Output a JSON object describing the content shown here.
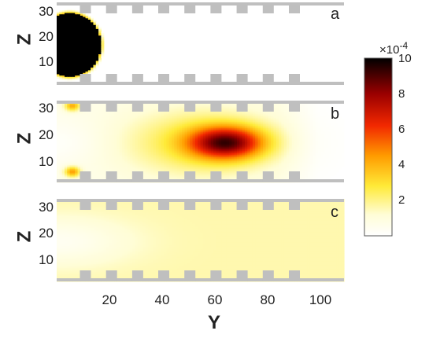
{
  "chart_data": {
    "type": "heatmap",
    "xlabel": "Y",
    "ylabel": "Z",
    "x_ticks": [
      "20",
      "40",
      "60",
      "80",
      "100"
    ],
    "y_ticks": [
      "30",
      "20",
      "10"
    ],
    "xlim": [
      0,
      110
    ],
    "ylim": [
      2,
      33
    ],
    "panels": [
      {
        "label": "a",
        "description": "initial concentration: saturated disc centered near Y=5, Z=17, radius about 12",
        "blobs": [
          {
            "y": 5,
            "z": 17,
            "ry": 12,
            "rz": 12,
            "peak": 10,
            "shape": "disc"
          }
        ]
      },
      {
        "label": "b",
        "description": "plume advected downstream, peak near Y=65, Z=17",
        "blobs": [
          {
            "y": 65,
            "z": 17,
            "ry": 14,
            "rz": 6,
            "peak": 6.8,
            "shape": "gauss"
          },
          {
            "y": 55,
            "z": 17,
            "ry": 30,
            "rz": 13,
            "peak": 2.2,
            "shape": "gauss"
          },
          {
            "y": 6,
            "z": 31,
            "ry": 3,
            "rz": 2,
            "peak": 3.5,
            "shape": "gauss"
          },
          {
            "y": 6,
            "z": 6,
            "ry": 3,
            "rz": 2,
            "peak": 3.8,
            "shape": "gauss"
          }
        ],
        "background": 0.6
      },
      {
        "label": "c",
        "description": "nearly uniform low concentration across domain",
        "blobs": [],
        "background": 1.6
      }
    ],
    "colorbar": {
      "label_exponent": "×10",
      "exponent_power": "-4",
      "ticks": [
        "10",
        "8",
        "6",
        "4",
        "2"
      ],
      "range": [
        0,
        10
      ],
      "colormap": "hot_reversed"
    },
    "wall_color": "#bfbfbf"
  }
}
